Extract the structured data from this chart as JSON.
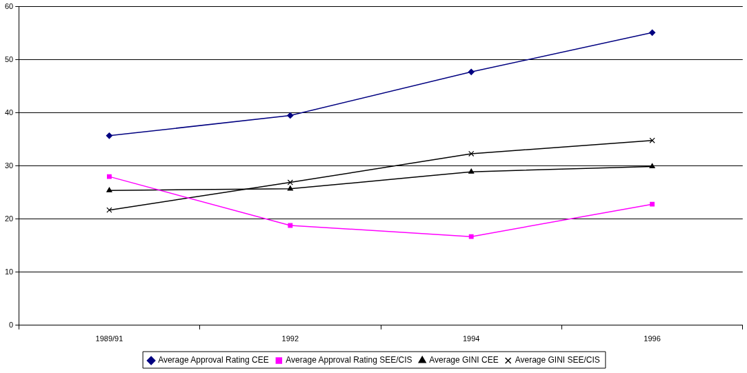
{
  "chart_data": {
    "type": "line",
    "categories": [
      "1989/91",
      "1992",
      "1994",
      "1996"
    ],
    "series": [
      {
        "name": "Average Approval Rating CEE",
        "color": "#000080",
        "marker": "diamond",
        "values": [
          35.7,
          39.5,
          47.7,
          55.1
        ]
      },
      {
        "name": "Average Approval Rating SEE/CIS",
        "color": "#ff00ff",
        "marker": "square",
        "values": [
          28.0,
          18.8,
          16.7,
          22.8
        ]
      },
      {
        "name": "Average GINI CEE",
        "color": "#000000",
        "marker": "triangle",
        "values": [
          25.4,
          25.7,
          28.9,
          29.9
        ]
      },
      {
        "name": "Average GINI SEE/CIS",
        "color": "#000000",
        "marker": "cross",
        "values": [
          21.7,
          26.9,
          32.3,
          34.8
        ]
      }
    ],
    "ylim": [
      0,
      60
    ],
    "yticks": [
      0,
      10,
      20,
      30,
      40,
      50,
      60
    ],
    "grid": "y",
    "legend": "bottom"
  }
}
